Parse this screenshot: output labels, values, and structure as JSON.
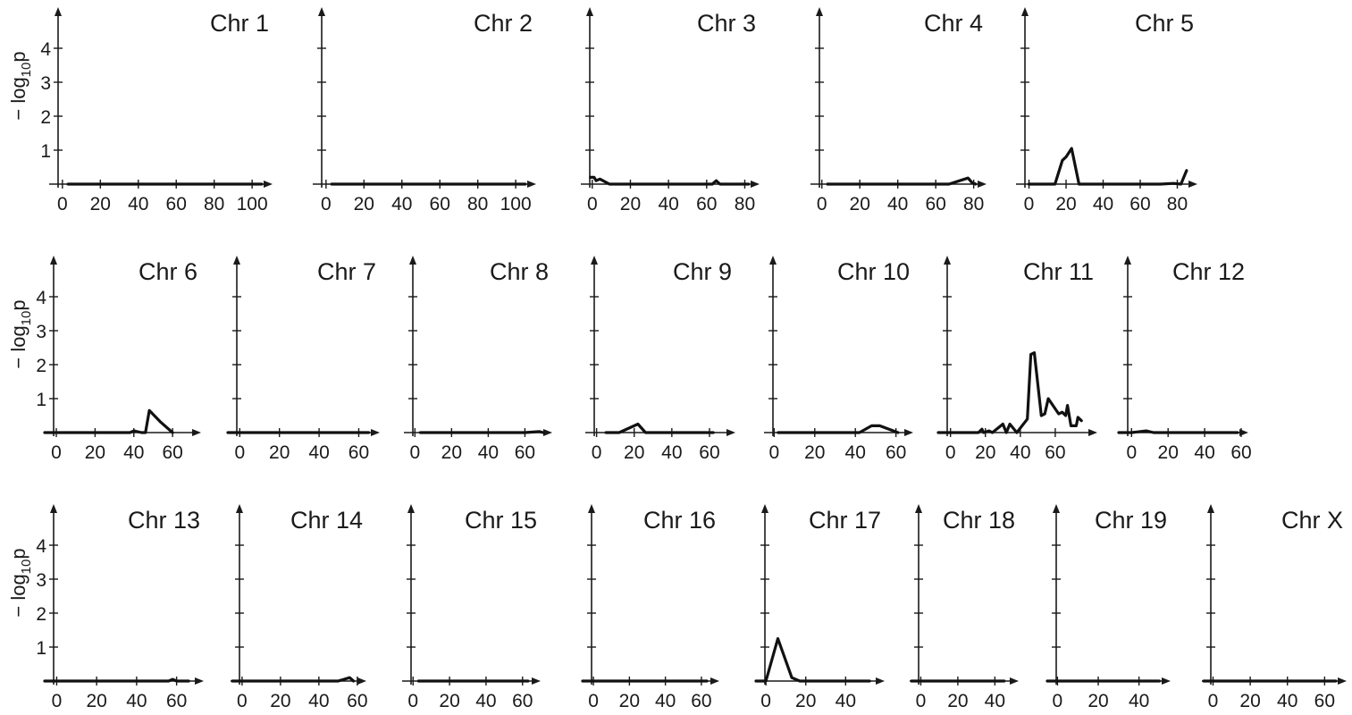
{
  "chart_data": {
    "type": "line",
    "ylabel_prefix": "− log",
    "ylabel_sub": "10",
    "ylabel_suffix": "p",
    "ylim": [
      0,
      4.6
    ],
    "yticks": [
      1,
      2,
      3,
      4
    ],
    "grid": false,
    "panels": [
      {
        "title": "Chr 1",
        "xlim": [
          -7,
          107
        ],
        "xticks": [
          0,
          20,
          40,
          60,
          80,
          100
        ],
        "points": [
          [
            3,
            0
          ],
          [
            105,
            0
          ]
        ]
      },
      {
        "title": "Chr 2",
        "xlim": [
          -7,
          107
        ],
        "xticks": [
          0,
          20,
          40,
          60,
          80,
          100
        ],
        "points": [
          [
            3,
            0
          ],
          [
            105,
            0
          ]
        ]
      },
      {
        "title": "Chr 3",
        "xlim": [
          -6,
          84
        ],
        "xticks": [
          0,
          20,
          40,
          60,
          80
        ],
        "points": [
          [
            -1,
            0.2
          ],
          [
            1,
            0.2
          ],
          [
            2,
            0.1
          ],
          [
            4,
            0.15
          ],
          [
            9,
            0
          ],
          [
            63,
            0
          ],
          [
            65,
            0.1
          ],
          [
            67,
            0
          ],
          [
            82,
            0
          ]
        ]
      },
      {
        "title": "Chr 4",
        "xlim": [
          -6,
          83
        ],
        "xticks": [
          0,
          20,
          40,
          60,
          80
        ],
        "points": [
          [
            3,
            0
          ],
          [
            67,
            0
          ],
          [
            77,
            0.18
          ],
          [
            79,
            0.05
          ],
          [
            81,
            0
          ]
        ]
      },
      {
        "title": "Chr 5",
        "xlim": [
          -7,
          87
        ],
        "xticks": [
          0,
          20,
          40,
          60,
          80
        ],
        "points": [
          [
            0,
            0
          ],
          [
            14,
            0
          ],
          [
            18,
            0.7
          ],
          [
            20,
            0.8
          ],
          [
            23,
            1.05
          ],
          [
            27,
            0
          ],
          [
            71,
            0
          ],
          [
            78,
            0.02
          ],
          [
            82,
            0
          ],
          [
            85,
            0.4
          ]
        ]
      },
      {
        "title": "Chr 6",
        "xlim": [
          -6,
          71
        ],
        "xticks": [
          0,
          20,
          40,
          60
        ],
        "points": [
          [
            -6,
            0
          ],
          [
            38,
            0
          ],
          [
            40,
            0.05
          ],
          [
            44,
            0
          ],
          [
            46,
            0
          ],
          [
            48,
            0.65
          ],
          [
            54,
            0.3
          ],
          [
            60,
            0
          ]
        ]
      },
      {
        "title": "Chr 7",
        "xlim": [
          -6,
          67
        ],
        "xticks": [
          0,
          20,
          40,
          60
        ],
        "points": [
          [
            -6,
            0
          ],
          [
            65,
            0
          ]
        ]
      },
      {
        "title": "Chr 8",
        "xlim": [
          -6,
          71
        ],
        "xticks": [
          0,
          20,
          40,
          60
        ],
        "points": [
          [
            3,
            0
          ],
          [
            60,
            0
          ],
          [
            68,
            0.03
          ],
          [
            70,
            0
          ]
        ]
      },
      {
        "title": "Chr 9",
        "xlim": [
          -6,
          70
        ],
        "xticks": [
          0,
          20,
          40,
          60
        ],
        "points": [
          [
            5,
            0
          ],
          [
            12,
            0
          ],
          [
            22,
            0.25
          ],
          [
            26,
            0
          ],
          [
            62,
            0
          ]
        ]
      },
      {
        "title": "Chr 10",
        "xlim": [
          -5,
          65
        ],
        "xticks": [
          0,
          20,
          40,
          60
        ],
        "points": [
          [
            2,
            0
          ],
          [
            42,
            0
          ],
          [
            48,
            0.2
          ],
          [
            52,
            0.2
          ],
          [
            61,
            0
          ]
        ]
      },
      {
        "title": "Chr 11",
        "xlim": [
          -7,
          80
        ],
        "xticks": [
          0,
          20,
          40,
          60
        ],
        "points": [
          [
            -7,
            0
          ],
          [
            16,
            0
          ],
          [
            18,
            0.1
          ],
          [
            19,
            0
          ],
          [
            22,
            0.05
          ],
          [
            24,
            0
          ],
          [
            30,
            0.25
          ],
          [
            32,
            0
          ],
          [
            34,
            0.25
          ],
          [
            38,
            0
          ],
          [
            44,
            0.4
          ],
          [
            46,
            2.3
          ],
          [
            48,
            2.35
          ],
          [
            52,
            0.5
          ],
          [
            54,
            0.55
          ],
          [
            56,
            1
          ],
          [
            62,
            0.55
          ],
          [
            64,
            0.6
          ],
          [
            66,
            0.5
          ],
          [
            67,
            0.8
          ],
          [
            69,
            0.2
          ],
          [
            72,
            0.2
          ],
          [
            73,
            0.45
          ],
          [
            75,
            0.35
          ]
        ]
      },
      {
        "title": "Chr 12",
        "xlim": [
          -7,
          60
        ],
        "xticks": [
          0,
          20,
          40,
          60
        ],
        "points": [
          [
            -7,
            0
          ],
          [
            0,
            0
          ],
          [
            8,
            0.05
          ],
          [
            12,
            0
          ],
          [
            58,
            0
          ]
        ]
      },
      {
        "title": "Chr 13",
        "xlim": [
          -6,
          70
        ],
        "xticks": [
          0,
          20,
          40,
          60
        ],
        "points": [
          [
            -6,
            0
          ],
          [
            56,
            0
          ],
          [
            58,
            0.05
          ],
          [
            60,
            0
          ],
          [
            66,
            0
          ]
        ]
      },
      {
        "title": "Chr 14",
        "xlim": [
          -6,
          61
        ],
        "xticks": [
          0,
          20,
          40,
          60
        ],
        "points": [
          [
            -5,
            0
          ],
          [
            50,
            0
          ],
          [
            56,
            0.1
          ],
          [
            58,
            0
          ]
        ]
      },
      {
        "title": "Chr 15",
        "xlim": [
          -6,
          66
        ],
        "xticks": [
          0,
          20,
          40,
          60
        ],
        "points": [
          [
            3,
            0
          ],
          [
            63,
            0
          ]
        ]
      },
      {
        "title": "Chr 16",
        "xlim": [
          -6,
          66
        ],
        "xticks": [
          0,
          20,
          40,
          60
        ],
        "points": [
          [
            -6,
            0
          ],
          [
            63,
            0
          ]
        ]
      },
      {
        "title": "Chr 17",
        "xlim": [
          -5,
          56
        ],
        "xticks": [
          0,
          20,
          40
        ],
        "points": [
          [
            -5,
            0
          ],
          [
            0,
            0
          ],
          [
            6,
            1.25
          ],
          [
            13,
            0.1
          ],
          [
            17,
            0
          ],
          [
            52,
            0
          ]
        ]
      },
      {
        "title": "Chr 18",
        "xlim": [
          -6,
          49
        ],
        "xticks": [
          0,
          20,
          40
        ],
        "points": [
          [
            -5,
            0
          ],
          [
            3,
            0
          ],
          [
            45,
            0
          ]
        ]
      },
      {
        "title": "Chr 19",
        "xlim": [
          -5,
          52
        ],
        "xticks": [
          0,
          20,
          40
        ],
        "points": [
          [
            -5,
            0
          ],
          [
            50,
            0
          ]
        ]
      },
      {
        "title": "Chr X",
        "xlim": [
          -6,
          68
        ],
        "xticks": [
          0,
          20,
          40,
          60
        ],
        "points": [
          [
            -5,
            0
          ],
          [
            66,
            0
          ]
        ]
      }
    ]
  }
}
